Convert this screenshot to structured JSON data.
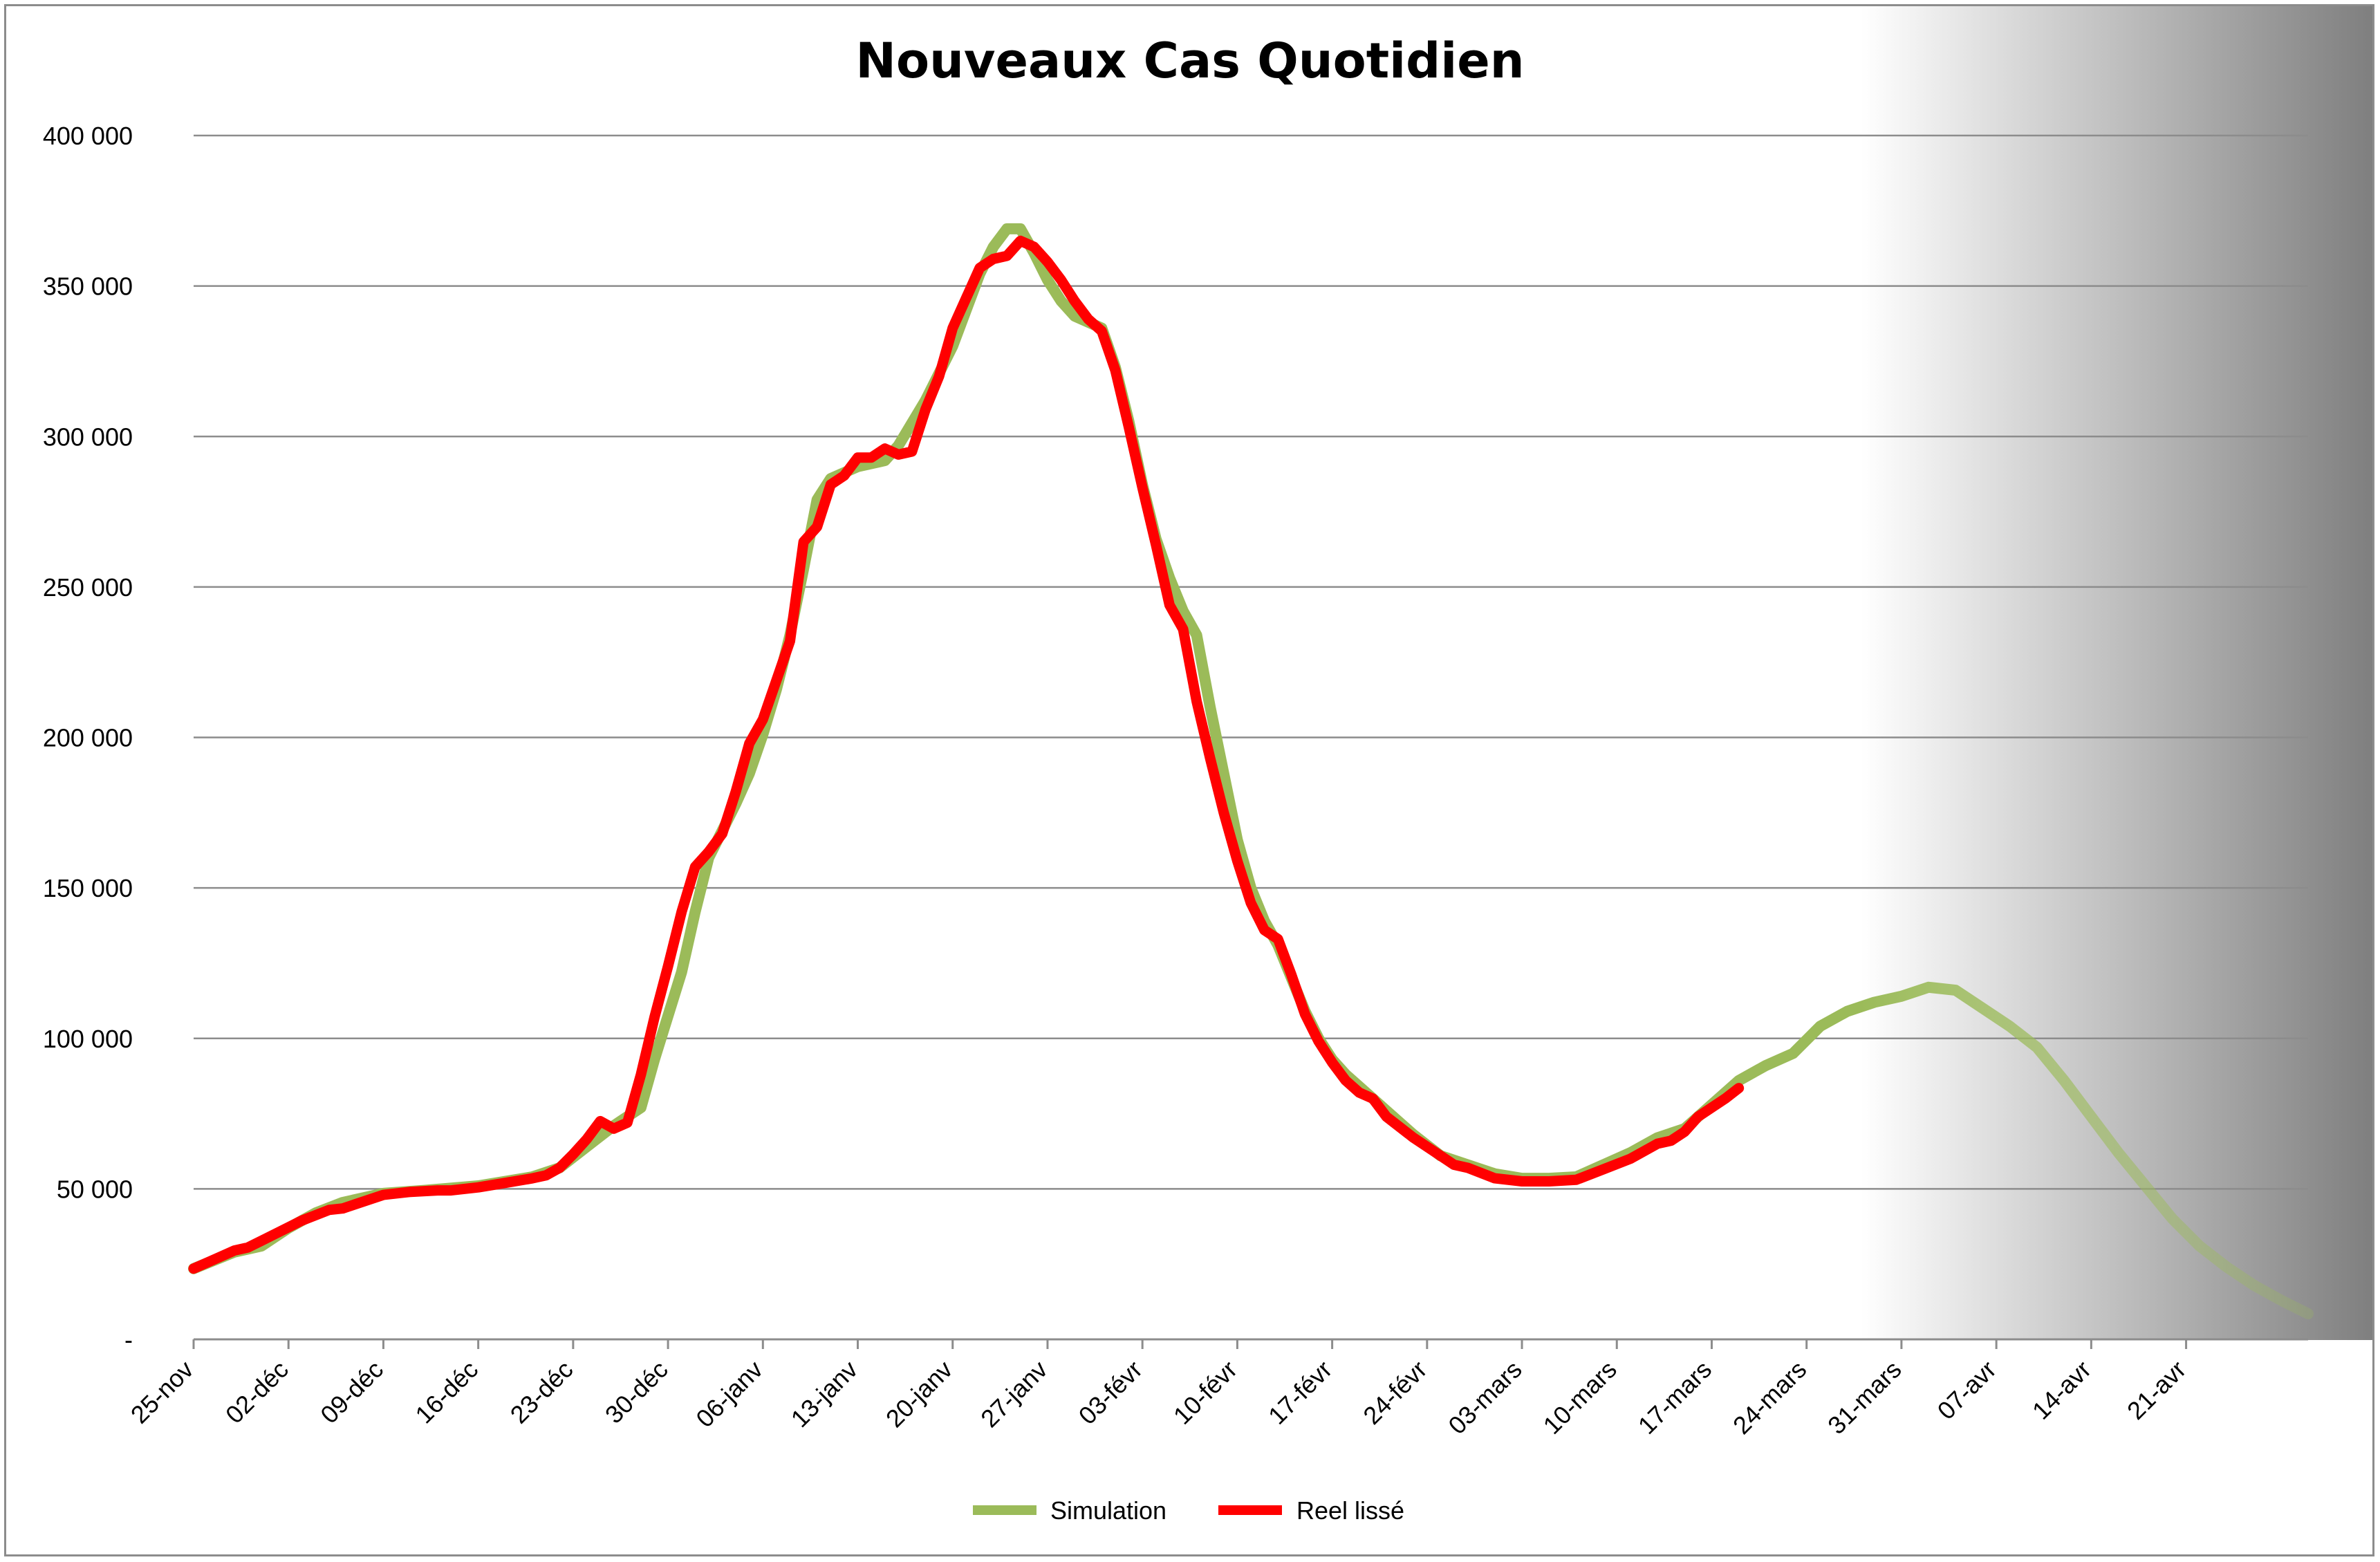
{
  "chart_data": {
    "type": "line",
    "title": "Nouveaux Cas Quotidien",
    "xlabel": "",
    "ylabel": "",
    "ylim": [
      0,
      400000
    ],
    "yticks": [
      {
        "value": 0,
        "label": "-"
      },
      {
        "value": 50000,
        "label": "50 000"
      },
      {
        "value": 100000,
        "label": "100 000"
      },
      {
        "value": 150000,
        "label": "150 000"
      },
      {
        "value": 200000,
        "label": "200 000"
      },
      {
        "value": 250000,
        "label": "250 000"
      },
      {
        "value": 300000,
        "label": "300 000"
      },
      {
        "value": 350000,
        "label": "350 000"
      },
      {
        "value": 400000,
        "label": "400 000"
      }
    ],
    "xlim_days": [
      0,
      156
    ],
    "xticks": [
      {
        "day": 0,
        "label": "25-nov"
      },
      {
        "day": 7,
        "label": "02-déc"
      },
      {
        "day": 14,
        "label": "09-déc"
      },
      {
        "day": 21,
        "label": "16-déc"
      },
      {
        "day": 28,
        "label": "23-déc"
      },
      {
        "day": 35,
        "label": "30-déc"
      },
      {
        "day": 42,
        "label": "06-janv"
      },
      {
        "day": 49,
        "label": "13-janv"
      },
      {
        "day": 56,
        "label": "20-janv"
      },
      {
        "day": 63,
        "label": "27-janv"
      },
      {
        "day": 70,
        "label": "03-févr"
      },
      {
        "day": 77,
        "label": "10-févr"
      },
      {
        "day": 84,
        "label": "17-févr"
      },
      {
        "day": 91,
        "label": "24-févr"
      },
      {
        "day": 98,
        "label": "03-mars"
      },
      {
        "day": 105,
        "label": "10-mars"
      },
      {
        "day": 112,
        "label": "17-mars"
      },
      {
        "day": 119,
        "label": "24-mars"
      },
      {
        "day": 126,
        "label": "31-mars"
      },
      {
        "day": 133,
        "label": "07-avr"
      },
      {
        "day": 140,
        "label": "14-avr"
      },
      {
        "day": 147,
        "label": "21-avr"
      }
    ],
    "grid": true,
    "legend_position": "bottom",
    "shaded_region": {
      "from_day": 123,
      "to_day": 156,
      "color_start": "#ffffff",
      "color_end": "#7f7f7f"
    },
    "series": [
      {
        "name": "Simulation",
        "color": "#9bbb59",
        "faded_after_day": 123,
        "points": [
          [
            0,
            23500
          ],
          [
            3,
            29000
          ],
          [
            5,
            31000
          ],
          [
            7,
            37000
          ],
          [
            9,
            42000
          ],
          [
            11,
            45500
          ],
          [
            14,
            48500
          ],
          [
            17,
            49500
          ],
          [
            21,
            51000
          ],
          [
            25,
            54000
          ],
          [
            27,
            57000
          ],
          [
            29,
            64000
          ],
          [
            31,
            71000
          ],
          [
            33,
            77000
          ],
          [
            34,
            93000
          ],
          [
            36,
            122000
          ],
          [
            37,
            142000
          ],
          [
            38,
            160000
          ],
          [
            39,
            169000
          ],
          [
            40,
            178000
          ],
          [
            41,
            188000
          ],
          [
            42,
            201000
          ],
          [
            43,
            216000
          ],
          [
            44,
            234000
          ],
          [
            45,
            256000
          ],
          [
            46,
            279000
          ],
          [
            47,
            286000
          ],
          [
            48,
            288000
          ],
          [
            49,
            290000
          ],
          [
            51,
            292000
          ],
          [
            52,
            297000
          ],
          [
            54,
            312000
          ],
          [
            56,
            330000
          ],
          [
            58,
            354000
          ],
          [
            59,
            363000
          ],
          [
            60,
            369000
          ],
          [
            61,
            369000
          ],
          [
            62,
            361000
          ],
          [
            63,
            352000
          ],
          [
            64,
            345000
          ],
          [
            65,
            340000
          ],
          [
            67,
            336000
          ],
          [
            68,
            323000
          ],
          [
            69,
            305000
          ],
          [
            70,
            284000
          ],
          [
            71,
            266000
          ],
          [
            72,
            253000
          ],
          [
            73,
            242000
          ],
          [
            74,
            234000
          ],
          [
            75,
            210000
          ],
          [
            76,
            188000
          ],
          [
            77,
            166000
          ],
          [
            78,
            150000
          ],
          [
            79,
            139000
          ],
          [
            80,
            131000
          ],
          [
            81,
            120000
          ],
          [
            82,
            109000
          ],
          [
            83,
            100000
          ],
          [
            84,
            93000
          ],
          [
            85,
            88000
          ],
          [
            86,
            84000
          ],
          [
            88,
            76000
          ],
          [
            90,
            68000
          ],
          [
            92,
            61000
          ],
          [
            94,
            58000
          ],
          [
            96,
            55000
          ],
          [
            98,
            53500
          ],
          [
            100,
            53500
          ],
          [
            102,
            54000
          ],
          [
            104,
            58000
          ],
          [
            106,
            62000
          ],
          [
            108,
            67000
          ],
          [
            110,
            70000
          ],
          [
            112,
            78000
          ],
          [
            114,
            86000
          ],
          [
            116,
            91000
          ],
          [
            118,
            95000
          ],
          [
            120,
            104000
          ],
          [
            122,
            109000
          ],
          [
            124,
            112000
          ],
          [
            126,
            114000
          ],
          [
            128,
            117000
          ],
          [
            130,
            116000
          ],
          [
            132,
            110000
          ],
          [
            134,
            104000
          ],
          [
            136,
            97000
          ],
          [
            138,
            86000
          ],
          [
            140,
            74000
          ],
          [
            142,
            62000
          ],
          [
            144,
            51000
          ],
          [
            146,
            40000
          ],
          [
            148,
            31000
          ],
          [
            150,
            24000
          ],
          [
            152,
            18000
          ],
          [
            154,
            13000
          ],
          [
            156,
            8500
          ]
        ]
      },
      {
        "name": "Reel lissé",
        "color": "#ff0000",
        "points": [
          [
            0,
            23500
          ],
          [
            2,
            27500
          ],
          [
            3,
            29500
          ],
          [
            4,
            30500
          ],
          [
            6,
            35000
          ],
          [
            8,
            39500
          ],
          [
            10,
            43000
          ],
          [
            11,
            43500
          ],
          [
            13,
            46500
          ],
          [
            14,
            48000
          ],
          [
            16,
            49000
          ],
          [
            18,
            49500
          ],
          [
            19,
            49500
          ],
          [
            21,
            50500
          ],
          [
            23,
            52000
          ],
          [
            25,
            53500
          ],
          [
            26,
            54500
          ],
          [
            27,
            57000
          ],
          [
            28,
            61500
          ],
          [
            29,
            66500
          ],
          [
            30,
            72500
          ],
          [
            31,
            70000
          ],
          [
            32,
            72000
          ],
          [
            33,
            88000
          ],
          [
            34,
            107000
          ],
          [
            35,
            124000
          ],
          [
            36,
            142000
          ],
          [
            37,
            157000
          ],
          [
            38,
            162000
          ],
          [
            39,
            168000
          ],
          [
            40,
            182000
          ],
          [
            41,
            198000
          ],
          [
            42,
            206000
          ],
          [
            43,
            219000
          ],
          [
            44,
            232000
          ],
          [
            45,
            265000
          ],
          [
            46,
            270000
          ],
          [
            47,
            284000
          ],
          [
            48,
            287000
          ],
          [
            49,
            293000
          ],
          [
            50,
            293000
          ],
          [
            51,
            296000
          ],
          [
            52,
            294000
          ],
          [
            53,
            295000
          ],
          [
            54,
            309000
          ],
          [
            55,
            320000
          ],
          [
            56,
            336000
          ],
          [
            57,
            346000
          ],
          [
            58,
            356000
          ],
          [
            59,
            359000
          ],
          [
            60,
            360000
          ],
          [
            61,
            365000
          ],
          [
            62,
            363000
          ],
          [
            63,
            358000
          ],
          [
            64,
            352000
          ],
          [
            65,
            345000
          ],
          [
            66,
            339000
          ],
          [
            67,
            335000
          ],
          [
            68,
            322000
          ],
          [
            69,
            303000
          ],
          [
            70,
            283000
          ],
          [
            71,
            264000
          ],
          [
            72,
            244000
          ],
          [
            73,
            236000
          ],
          [
            74,
            212000
          ],
          [
            75,
            193000
          ],
          [
            76,
            175000
          ],
          [
            77,
            159000
          ],
          [
            78,
            145000
          ],
          [
            79,
            136000
          ],
          [
            80,
            133000
          ],
          [
            81,
            121000
          ],
          [
            82,
            108000
          ],
          [
            83,
            99000
          ],
          [
            84,
            92000
          ],
          [
            85,
            86000
          ],
          [
            86,
            82000
          ],
          [
            87,
            80000
          ],
          [
            88,
            74000
          ],
          [
            90,
            67000
          ],
          [
            92,
            61000
          ],
          [
            93,
            58000
          ],
          [
            94,
            57000
          ],
          [
            96,
            53500
          ],
          [
            98,
            52500
          ],
          [
            100,
            52500
          ],
          [
            102,
            53000
          ],
          [
            104,
            56500
          ],
          [
            106,
            60000
          ],
          [
            108,
            65000
          ],
          [
            109,
            66000
          ],
          [
            110,
            69000
          ],
          [
            111,
            74000
          ],
          [
            113,
            80000
          ],
          [
            114,
            83500
          ]
        ]
      }
    ]
  }
}
